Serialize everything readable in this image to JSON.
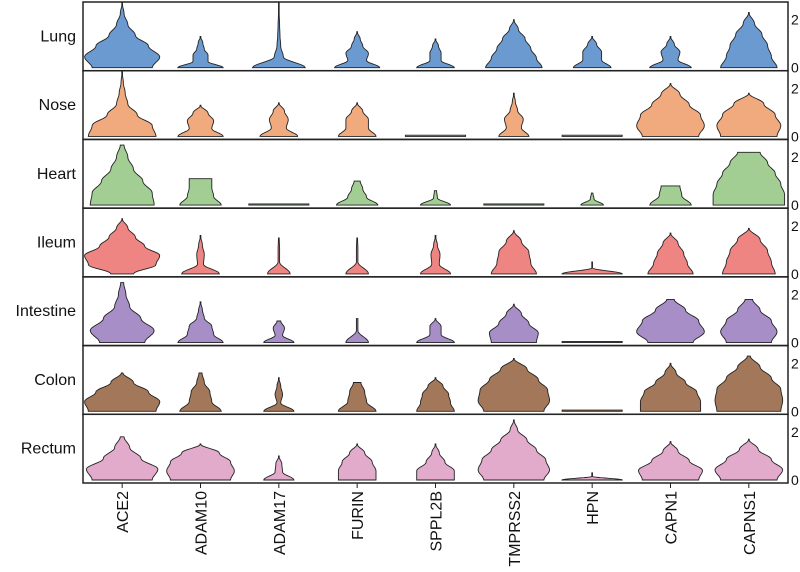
{
  "chart_data": {
    "type": "violin",
    "title": "",
    "xlabel": "",
    "ylabel": "",
    "ylim": [
      0,
      2.8
    ],
    "yticks": [
      "0",
      "2"
    ],
    "genes": [
      "ACE2",
      "ADAM10",
      "ADAM17",
      "FURIN",
      "SPPL2B",
      "TMPRSS2",
      "HPN",
      "CAPN1",
      "CAPNS1"
    ],
    "tissues": [
      {
        "name": "Lung",
        "color": "#6A9AD0",
        "violins": [
          {
            "max": 2.7,
            "d": [
              0.8,
              1,
              0.7,
              0.35,
              0.15,
              0.05,
              0
            ]
          },
          {
            "max": 1.3,
            "d": [
              0.6,
              0.2,
              0.2,
              0.1,
              0.06,
              0
            ]
          },
          {
            "max": 2.7,
            "d": [
              0.7,
              0.12,
              0.05,
              0.03,
              0.02,
              0.01,
              0
            ]
          },
          {
            "max": 1.5,
            "d": [
              0.6,
              0.25,
              0.3,
              0.15,
              0.08,
              0
            ]
          },
          {
            "max": 1.2,
            "d": [
              0.5,
              0.15,
              0.15,
              0.08,
              0
            ]
          },
          {
            "max": 2.0,
            "d": [
              0.75,
              0.6,
              0.45,
              0.3,
              0.12,
              0
            ]
          },
          {
            "max": 1.3,
            "d": [
              0.5,
              0.25,
              0.25,
              0.12,
              0
            ]
          },
          {
            "max": 1.3,
            "d": [
              0.55,
              0.2,
              0.25,
              0.1,
              0
            ]
          },
          {
            "max": 2.3,
            "d": [
              0.75,
              0.6,
              0.5,
              0.35,
              0.15,
              0
            ]
          }
        ]
      },
      {
        "name": "Nose",
        "color": "#F0AA7E",
        "violins": [
          {
            "max": 2.7,
            "d": [
              0.9,
              0.8,
              0.4,
              0.15,
              0.08,
              0.03,
              0
            ]
          },
          {
            "max": 1.3,
            "d": [
              0.6,
              0.3,
              0.35,
              0.2,
              0
            ]
          },
          {
            "max": 1.4,
            "d": [
              0.5,
              0.2,
              0.25,
              0.15,
              0
            ]
          },
          {
            "max": 1.4,
            "d": [
              0.5,
              0.3,
              0.3,
              0.15,
              0
            ]
          },
          {
            "max": 0.05,
            "d": [
              0.8,
              0.8
            ]
          },
          {
            "max": 1.8,
            "d": [
              0.4,
              0.2,
              0.25,
              0.1,
              0.04,
              0
            ]
          },
          {
            "max": 0.05,
            "d": [
              0.8,
              0.8
            ]
          },
          {
            "max": 2.2,
            "d": [
              0.75,
              0.9,
              0.8,
              0.5,
              0.25,
              0
            ]
          },
          {
            "max": 1.8,
            "d": [
              0.75,
              0.85,
              0.7,
              0.4,
              0
            ]
          }
        ]
      },
      {
        "name": "Heart",
        "color": "#A2CE94",
        "violins": [
          {
            "max": 2.5,
            "d": [
              0.85,
              0.8,
              0.55,
              0.3,
              0.15,
              0.05
            ]
          },
          {
            "max": 1.1,
            "d": [
              0.55,
              0.35,
              0.3,
              0.3
            ]
          },
          {
            "max": 0.05,
            "d": [
              0.8,
              0.8
            ]
          },
          {
            "max": 1.0,
            "d": [
              0.55,
              0.25,
              0.15,
              0.08
            ]
          },
          {
            "max": 0.6,
            "d": [
              0.4,
              0.05,
              0.03
            ]
          },
          {
            "max": 0.05,
            "d": [
              0.8,
              0.8
            ]
          },
          {
            "max": 0.5,
            "d": [
              0.3,
              0.05,
              0.02
            ]
          },
          {
            "max": 0.8,
            "d": [
              0.55,
              0.3,
              0.25
            ]
          },
          {
            "max": 2.2,
            "d": [
              0.95,
              0.95,
              0.85,
              0.7,
              0.5,
              0.3
            ]
          }
        ]
      },
      {
        "name": "Ileum",
        "color": "#EE8583",
        "violins": [
          {
            "max": 2.3,
            "d": [
              0.3,
              0.9,
              1,
              0.6,
              0.35,
              0.15,
              0
            ]
          },
          {
            "max": 1.6,
            "d": [
              0.5,
              0.08,
              0.1,
              0.05,
              0
            ]
          },
          {
            "max": 1.5,
            "d": [
              0.3,
              0.02,
              0.02,
              0.01
            ]
          },
          {
            "max": 1.5,
            "d": [
              0.3,
              0.02,
              0.02,
              0.01
            ]
          },
          {
            "max": 1.6,
            "d": [
              0.4,
              0.1,
              0.12,
              0.05,
              0
            ]
          },
          {
            "max": 1.8,
            "d": [
              0.6,
              0.45,
              0.4,
              0.2,
              0
            ]
          },
          {
            "max": 0.5,
            "d": [
              0.8,
              0.01,
              0.01
            ]
          },
          {
            "max": 1.7,
            "d": [
              0.6,
              0.45,
              0.35,
              0.2,
              0
            ]
          },
          {
            "max": 1.9,
            "d": [
              0.7,
              0.6,
              0.5,
              0.3,
              0
            ]
          }
        ]
      },
      {
        "name": "Intestine",
        "color": "#A78EC6",
        "violins": [
          {
            "max": 2.5,
            "d": [
              0.6,
              0.85,
              0.5,
              0.2,
              0.1,
              0.04
            ]
          },
          {
            "max": 1.7,
            "d": [
              0.6,
              0.35,
              0.3,
              0.1,
              0.05,
              0
            ]
          },
          {
            "max": 0.9,
            "d": [
              0.4,
              0.1,
              0.15,
              0.05
            ]
          },
          {
            "max": 1.0,
            "d": [
              0.3,
              0.02,
              0.02
            ]
          },
          {
            "max": 1.0,
            "d": [
              0.5,
              0.15,
              0.15,
              0
            ]
          },
          {
            "max": 1.6,
            "d": [
              0.6,
              0.65,
              0.4,
              0.2,
              0
            ]
          },
          {
            "max": 0.05,
            "d": [
              0.8,
              0.8
            ]
          },
          {
            "max": 1.8,
            "d": [
              0.6,
              0.9,
              0.75,
              0.4,
              0.1
            ]
          },
          {
            "max": 1.8,
            "d": [
              0.6,
              0.75,
              0.6,
              0.3,
              0.1
            ]
          }
        ]
      },
      {
        "name": "Colon",
        "color": "#A2775A",
        "violins": [
          {
            "max": 1.6,
            "d": [
              0.9,
              1,
              0.7,
              0.3,
              0.02
            ]
          },
          {
            "max": 1.6,
            "d": [
              0.55,
              0.3,
              0.25,
              0.1,
              0.04
            ]
          },
          {
            "max": 1.4,
            "d": [
              0.4,
              0.05,
              0.1,
              0.05,
              0
            ]
          },
          {
            "max": 1.2,
            "d": [
              0.5,
              0.25,
              0.2,
              0.1
            ]
          },
          {
            "max": 1.4,
            "d": [
              0.5,
              0.4,
              0.35,
              0.2,
              0
            ]
          },
          {
            "max": 2.2,
            "d": [
              0.8,
              0.95,
              0.9,
              0.65,
              0.35,
              0
            ]
          },
          {
            "max": 0.05,
            "d": [
              0.8,
              0.8
            ]
          },
          {
            "max": 2.0,
            "d": [
              0.8,
              0.8,
              0.7,
              0.4,
              0.15,
              0
            ]
          },
          {
            "max": 2.3,
            "d": [
              0.85,
              0.9,
              0.85,
              0.6,
              0.3,
              0.04
            ]
          }
        ]
      },
      {
        "name": "Rectum",
        "color": "#E2AACB",
        "violins": [
          {
            "max": 1.8,
            "d": [
              0.8,
              0.95,
              0.5,
              0.2,
              0.05
            ]
          },
          {
            "max": 1.5,
            "d": [
              0.8,
              0.9,
              0.8,
              0.5,
              0
            ]
          },
          {
            "max": 1.0,
            "d": [
              0.4,
              0.1,
              0.08,
              0
            ]
          },
          {
            "max": 1.5,
            "d": [
              0.5,
              0.5,
              0.4,
              0.2,
              0
            ]
          },
          {
            "max": 1.5,
            "d": [
              0.5,
              0.5,
              0.25,
              0.1,
              0
            ]
          },
          {
            "max": 2.5,
            "d": [
              0.8,
              0.95,
              0.85,
              0.6,
              0.35,
              0.1,
              0
            ]
          },
          {
            "max": 0.3,
            "d": [
              0.8,
              0.01,
              0.01
            ]
          },
          {
            "max": 1.6,
            "d": [
              0.75,
              0.85,
              0.5,
              0.2,
              0
            ]
          },
          {
            "max": 1.7,
            "d": [
              0.75,
              0.9,
              0.6,
              0.25,
              0
            ]
          }
        ]
      }
    ]
  }
}
